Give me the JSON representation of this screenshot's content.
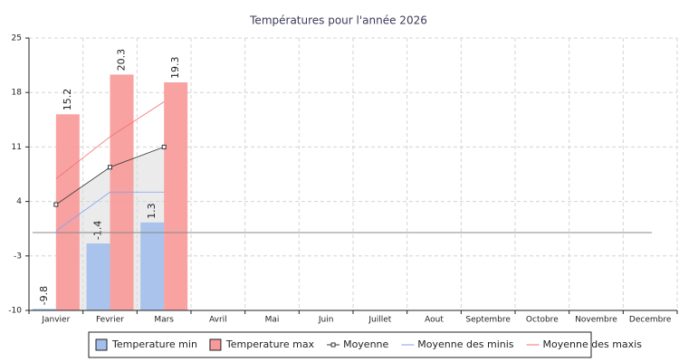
{
  "chart_data": {
    "type": "bar",
    "title": "Températures pour l'année 2026",
    "categories": [
      "Janvier",
      "Fevrier",
      "Mars",
      "Avril",
      "Mai",
      "Juin",
      "Juillet",
      "Aout",
      "Septembre",
      "Octobre",
      "Novembre",
      "Decembre"
    ],
    "series": [
      {
        "name": "Temperature min",
        "type": "bar",
        "color": "#a4bfec",
        "values": [
          -9.8,
          -1.4,
          1.3,
          null,
          null,
          null,
          null,
          null,
          null,
          null,
          null,
          null
        ]
      },
      {
        "name": "Temperature max",
        "type": "bar",
        "color": "#f79a9a",
        "values": [
          15.2,
          20.3,
          19.3,
          null,
          null,
          null,
          null,
          null,
          null,
          null,
          null,
          null
        ]
      },
      {
        "name": "Moyenne",
        "type": "line",
        "color": "#333333",
        "marker": true,
        "area": true,
        "values": [
          3.6,
          8.4,
          11.0,
          null,
          null,
          null,
          null,
          null,
          null,
          null,
          null,
          null
        ]
      },
      {
        "name": "Moyenne des minis",
        "type": "line",
        "color": "#7f9ff0",
        "values": [
          0.2,
          5.2,
          5.2,
          null,
          null,
          null,
          null,
          null,
          null,
          null,
          null,
          null
        ]
      },
      {
        "name": "Moyenne des maxis",
        "type": "line",
        "color": "#f07070",
        "values": [
          6.9,
          12.3,
          16.8,
          null,
          null,
          null,
          null,
          null,
          null,
          null,
          null,
          null
        ]
      }
    ],
    "ylim": [
      -10,
      25
    ],
    "yticks": [
      -10,
      -3,
      4,
      11,
      18,
      25
    ],
    "threshold": 0,
    "grid": true,
    "legend": "bottom"
  }
}
